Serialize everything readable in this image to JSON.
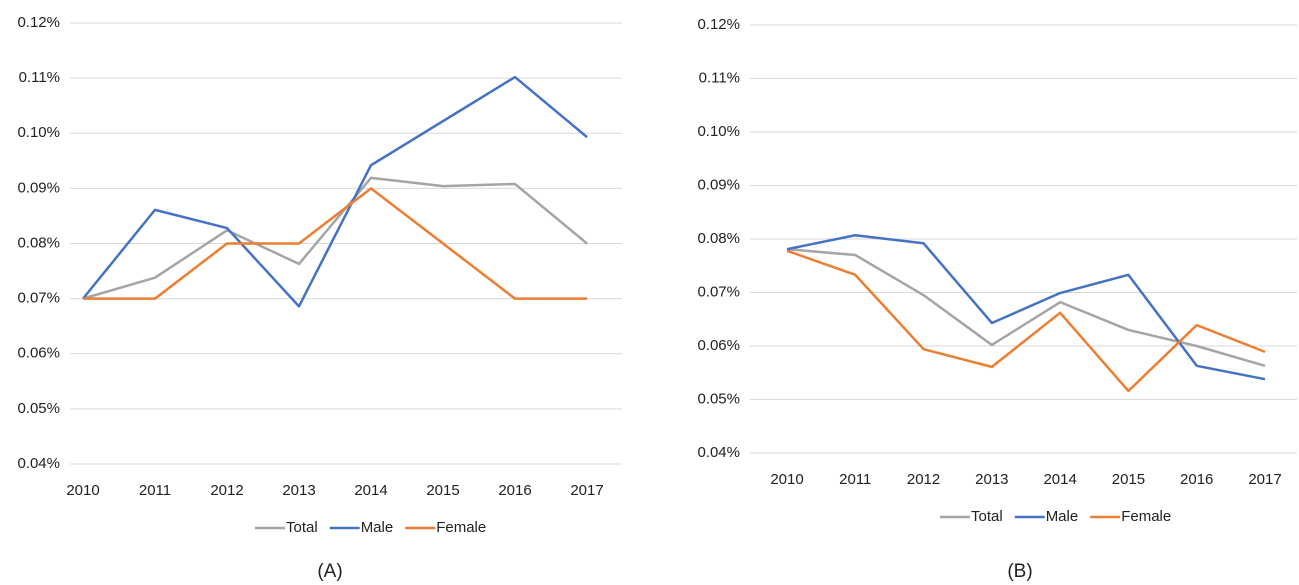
{
  "chart_data": [
    {
      "type": "line",
      "caption": "(A)",
      "categories": [
        "2010",
        "2011",
        "2012",
        "2013",
        "2014",
        "2015",
        "2016",
        "2017"
      ],
      "series": [
        {
          "name": "Total",
          "color": "#a5a5a5",
          "values": [
            0.07,
            0.0738,
            0.0824,
            0.0763,
            0.0919,
            0.0904,
            0.0908,
            0.08
          ]
        },
        {
          "name": "Male",
          "color": "#4472c4",
          "values": [
            0.07,
            0.0861,
            0.0828,
            0.0686,
            0.0942,
            0.1022,
            0.1102,
            0.0993
          ]
        },
        {
          "name": "Female",
          "color": "#ed7d31",
          "values": [
            0.07,
            0.07,
            0.08,
            0.08,
            0.09,
            0.08,
            0.07,
            0.07
          ]
        }
      ],
      "ylim": [
        0.04,
        0.12
      ],
      "yticks": [
        {
          "value": 0.04,
          "label": "0.04%"
        },
        {
          "value": 0.05,
          "label": "0.05%"
        },
        {
          "value": 0.06,
          "label": "0.06%"
        },
        {
          "value": 0.07,
          "label": "0.07%"
        },
        {
          "value": 0.08,
          "label": "0.08%"
        },
        {
          "value": 0.09,
          "label": "0.09%"
        },
        {
          "value": 0.1,
          "label": "0.10%"
        },
        {
          "value": 0.11,
          "label": "0.11%"
        },
        {
          "value": 0.12,
          "label": "0.12%"
        }
      ],
      "grid": true,
      "legend": "bottom"
    },
    {
      "type": "line",
      "caption": "(B)",
      "categories": [
        "2010",
        "2011",
        "2012",
        "2013",
        "2014",
        "2015",
        "2016",
        "2017"
      ],
      "series": [
        {
          "name": "Total",
          "color": "#a5a5a5",
          "values": [
            0.0781,
            0.077,
            0.0695,
            0.0602,
            0.0682,
            0.063,
            0.06,
            0.0563
          ]
        },
        {
          "name": "Male",
          "color": "#4472c4",
          "values": [
            0.0781,
            0.0807,
            0.0792,
            0.0643,
            0.0699,
            0.0733,
            0.0563,
            0.0538
          ]
        },
        {
          "name": "Female",
          "color": "#ed7d31",
          "values": [
            0.0778,
            0.0733,
            0.0594,
            0.0561,
            0.0662,
            0.0516,
            0.0639,
            0.0589
          ]
        }
      ],
      "ylim": [
        0.04,
        0.12
      ],
      "yticks": [
        {
          "value": 0.04,
          "label": "0.04%"
        },
        {
          "value": 0.05,
          "label": "0.05%"
        },
        {
          "value": 0.06,
          "label": "0.06%"
        },
        {
          "value": 0.07,
          "label": "0.07%"
        },
        {
          "value": 0.08,
          "label": "0.08%"
        },
        {
          "value": 0.09,
          "label": "0.09%"
        },
        {
          "value": 0.1,
          "label": "0.10%"
        },
        {
          "value": 0.11,
          "label": "0.11%"
        },
        {
          "value": 0.12,
          "label": "0.12%"
        }
      ],
      "grid": true,
      "legend": "bottom"
    }
  ]
}
